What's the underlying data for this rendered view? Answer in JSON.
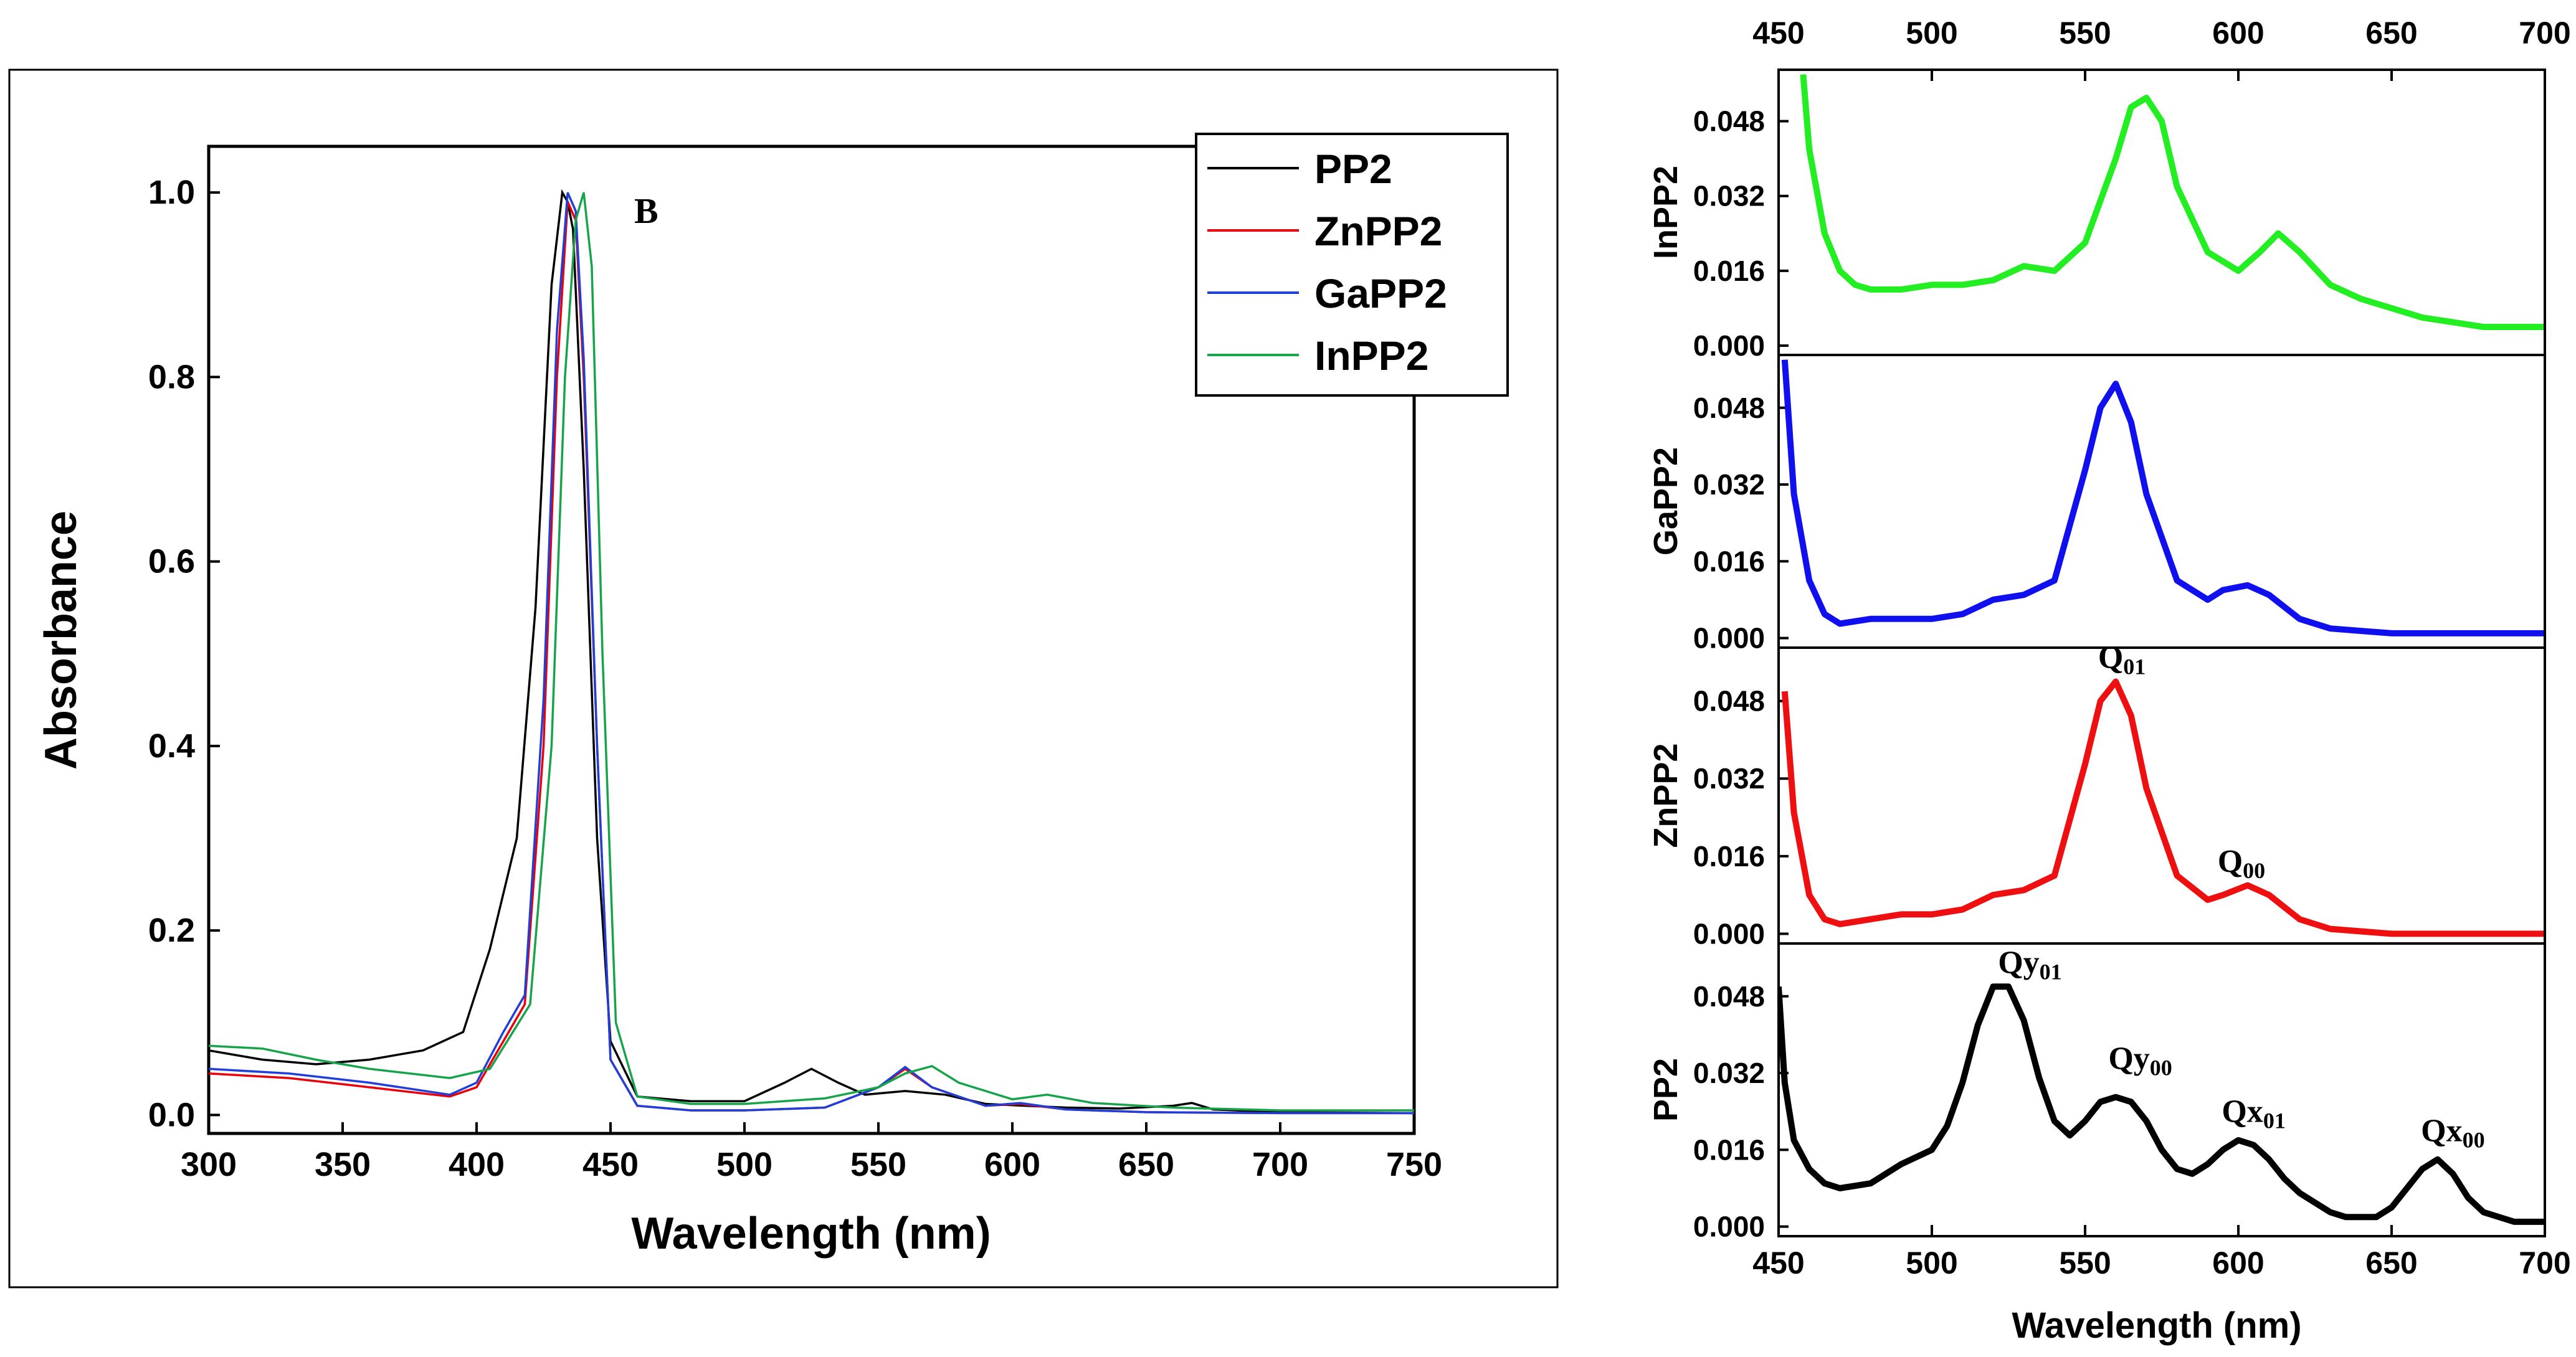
{
  "chart_data": [
    {
      "type": "line",
      "panel_label": "B",
      "xlabel": "Wavelength (nm)",
      "ylabel": "Absorbance",
      "xlim": [
        300,
        750
      ],
      "ylim": [
        -0.02,
        1.05
      ],
      "xticks": [
        300,
        350,
        400,
        450,
        500,
        550,
        600,
        650,
        700,
        750
      ],
      "yticks": [
        0.0,
        0.2,
        0.4,
        0.6,
        0.8,
        1.0
      ],
      "grid": false,
      "legend_position": "top-right",
      "series": [
        {
          "name": "PP2",
          "color": "#000000",
          "x": [
            300,
            320,
            340,
            360,
            380,
            395,
            405,
            415,
            422,
            428,
            432,
            434,
            436,
            440,
            445,
            450,
            460,
            480,
            500,
            515,
            525,
            535,
            545,
            560,
            575,
            590,
            605,
            620,
            640,
            660,
            667,
            675,
            700,
            750
          ],
          "y": [
            0.07,
            0.06,
            0.055,
            0.06,
            0.07,
            0.09,
            0.18,
            0.3,
            0.55,
            0.9,
            1.0,
            0.99,
            0.96,
            0.7,
            0.3,
            0.08,
            0.02,
            0.015,
            0.015,
            0.035,
            0.05,
            0.035,
            0.022,
            0.026,
            0.022,
            0.012,
            0.01,
            0.008,
            0.007,
            0.01,
            0.013,
            0.006,
            0.003,
            0.002
          ]
        },
        {
          "name": "ZnPP2",
          "color": "#e8000b",
          "x": [
            300,
            330,
            360,
            390,
            400,
            410,
            418,
            425,
            430,
            434,
            437,
            440,
            445,
            450,
            460,
            480,
            500,
            530,
            550,
            560,
            570,
            590,
            603,
            620,
            650,
            700,
            750
          ],
          "y": [
            0.045,
            0.04,
            0.03,
            0.02,
            0.03,
            0.08,
            0.12,
            0.4,
            0.8,
            0.99,
            0.97,
            0.8,
            0.4,
            0.06,
            0.01,
            0.005,
            0.005,
            0.008,
            0.03,
            0.05,
            0.03,
            0.01,
            0.012,
            0.006,
            0.003,
            0.002,
            0.002
          ]
        },
        {
          "name": "GaPP2",
          "color": "#1f3fd8",
          "x": [
            300,
            330,
            360,
            390,
            400,
            410,
            418,
            425,
            430,
            434,
            437,
            440,
            445,
            450,
            460,
            480,
            500,
            530,
            550,
            560,
            570,
            590,
            603,
            620,
            650,
            700,
            750
          ],
          "y": [
            0.05,
            0.045,
            0.035,
            0.022,
            0.035,
            0.09,
            0.13,
            0.45,
            0.85,
            1.0,
            0.98,
            0.82,
            0.4,
            0.06,
            0.01,
            0.005,
            0.005,
            0.008,
            0.03,
            0.052,
            0.03,
            0.01,
            0.013,
            0.006,
            0.003,
            0.002,
            0.002
          ]
        },
        {
          "name": "InPP2",
          "color": "#16a34a",
          "x": [
            300,
            320,
            340,
            360,
            390,
            405,
            420,
            428,
            433,
            437,
            440,
            443,
            447,
            452,
            460,
            480,
            500,
            530,
            550,
            560,
            570,
            580,
            600,
            613,
            630,
            660,
            700,
            750
          ],
          "y": [
            0.075,
            0.072,
            0.06,
            0.05,
            0.04,
            0.05,
            0.12,
            0.4,
            0.8,
            0.97,
            1.0,
            0.92,
            0.5,
            0.1,
            0.02,
            0.012,
            0.012,
            0.018,
            0.03,
            0.045,
            0.053,
            0.035,
            0.017,
            0.022,
            0.013,
            0.008,
            0.005,
            0.005
          ]
        }
      ]
    },
    {
      "type": "line",
      "xlabel": "Wavelength (nm)",
      "xlim": [
        450,
        700
      ],
      "xticks": [
        450,
        500,
        550,
        600,
        650,
        700
      ],
      "ylim": [
        -0.002,
        0.059
      ],
      "yticks": [
        0.0,
        0.016,
        0.032,
        0.048
      ],
      "ytick_labels": [
        "0.000",
        "0.016",
        "0.032",
        "0.048"
      ],
      "grid": false,
      "panels": [
        {
          "ylabel": "InPP2",
          "color": "#22ee22",
          "x": [
            458,
            460,
            465,
            470,
            475,
            480,
            490,
            500,
            510,
            520,
            530,
            540,
            550,
            560,
            565,
            570,
            575,
            580,
            590,
            600,
            607,
            613,
            620,
            630,
            640,
            650,
            660,
            670,
            680,
            690,
            700
          ],
          "y": [
            0.058,
            0.042,
            0.024,
            0.016,
            0.013,
            0.012,
            0.012,
            0.013,
            0.013,
            0.014,
            0.017,
            0.016,
            0.022,
            0.04,
            0.051,
            0.053,
            0.048,
            0.034,
            0.02,
            0.016,
            0.02,
            0.024,
            0.02,
            0.013,
            0.01,
            0.008,
            0.006,
            0.005,
            0.004,
            0.004,
            0.004
          ]
        },
        {
          "ylabel": "GaPP2",
          "color": "#1010ee",
          "x": [
            452,
            455,
            460,
            465,
            470,
            480,
            490,
            500,
            510,
            520,
            530,
            540,
            550,
            555,
            560,
            565,
            570,
            580,
            590,
            595,
            603,
            610,
            620,
            630,
            650,
            670,
            700
          ],
          "y": [
            0.058,
            0.03,
            0.012,
            0.005,
            0.003,
            0.004,
            0.004,
            0.004,
            0.005,
            0.008,
            0.009,
            0.012,
            0.035,
            0.048,
            0.053,
            0.045,
            0.03,
            0.012,
            0.008,
            0.01,
            0.011,
            0.009,
            0.004,
            0.002,
            0.001,
            0.001,
            0.001
          ]
        },
        {
          "ylabel": "ZnPP2",
          "color": "#ee1010",
          "x": [
            452,
            455,
            460,
            465,
            470,
            480,
            490,
            500,
            510,
            520,
            530,
            540,
            550,
            555,
            560,
            565,
            570,
            580,
            590,
            595,
            603,
            610,
            620,
            630,
            650,
            670,
            700
          ],
          "y": [
            0.05,
            0.025,
            0.008,
            0.003,
            0.002,
            0.003,
            0.004,
            0.004,
            0.005,
            0.008,
            0.009,
            0.012,
            0.035,
            0.048,
            0.052,
            0.045,
            0.03,
            0.012,
            0.007,
            0.008,
            0.01,
            0.008,
            0.003,
            0.001,
            0.0,
            0.0,
            0.0
          ]
        },
        {
          "ylabel": "PP2",
          "color": "#000000",
          "x": [
            450,
            452,
            455,
            460,
            465,
            470,
            480,
            490,
            500,
            505,
            510,
            515,
            520,
            525,
            530,
            535,
            540,
            545,
            550,
            555,
            560,
            565,
            570,
            575,
            580,
            585,
            590,
            595,
            600,
            605,
            610,
            615,
            620,
            625,
            630,
            635,
            640,
            645,
            650,
            655,
            660,
            665,
            670,
            675,
            680,
            690,
            700
          ],
          "y": [
            0.05,
            0.03,
            0.018,
            0.012,
            0.009,
            0.008,
            0.009,
            0.013,
            0.016,
            0.021,
            0.03,
            0.042,
            0.05,
            0.05,
            0.043,
            0.031,
            0.022,
            0.019,
            0.022,
            0.026,
            0.027,
            0.026,
            0.022,
            0.016,
            0.012,
            0.011,
            0.013,
            0.016,
            0.018,
            0.017,
            0.014,
            0.01,
            0.007,
            0.005,
            0.003,
            0.002,
            0.002,
            0.002,
            0.004,
            0.008,
            0.012,
            0.014,
            0.011,
            0.006,
            0.003,
            0.001,
            0.001
          ]
        }
      ],
      "annotations": [
        {
          "panel": 2,
          "main": "Q",
          "sub": "01",
          "x": 562,
          "y": 0.053
        },
        {
          "panel": 2,
          "main": "Q",
          "sub": "00",
          "x": 601,
          "y": 0.011
        },
        {
          "panel": 3,
          "main": "Qy",
          "sub": "01",
          "x": 532,
          "y": 0.051
        },
        {
          "panel": 3,
          "main": "Qy",
          "sub": "00",
          "x": 568,
          "y": 0.031
        },
        {
          "panel": 3,
          "main": "Qx",
          "sub": "01",
          "x": 605,
          "y": 0.02
        },
        {
          "panel": 3,
          "main": "Qx",
          "sub": "00",
          "x": 670,
          "y": 0.016
        }
      ]
    }
  ]
}
